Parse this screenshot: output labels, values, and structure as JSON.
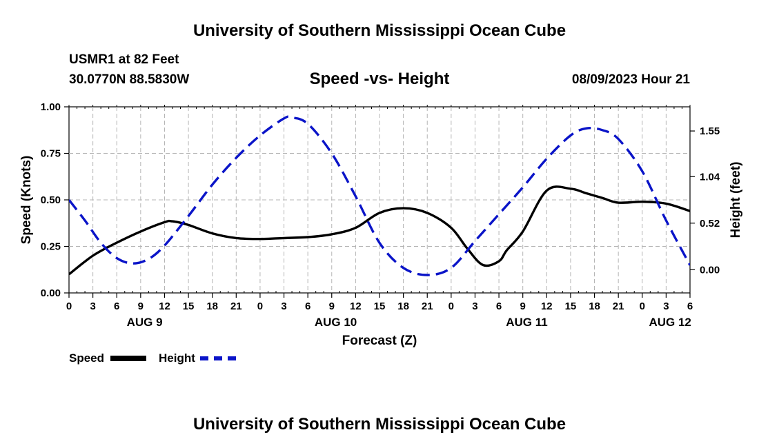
{
  "header": {
    "title": "University of Southern Mississippi Ocean Cube",
    "station": "USMR1 at 82 Feet",
    "coords": "30.0770N  88.5830W",
    "subtitle": "Speed -vs- Height",
    "datetime": "08/09/2023 Hour 21",
    "footer_title": "University of Southern Mississippi Ocean Cube"
  },
  "colors": {
    "speed": "#000000",
    "height": "#0a14c8",
    "grid": "#b4b4b4"
  },
  "legend": {
    "speed_label": "Speed",
    "height_label": "Height"
  },
  "chart_data": {
    "type": "line",
    "title": "Speed -vs- Height",
    "xlabel": "Forecast (Z)",
    "ylabel": "Speed (Knots)",
    "y2label": "Height (feet)",
    "xlim": [
      0,
      78
    ],
    "ylim": [
      0,
      1
    ],
    "y2lim": [
      -0.26,
      1.82
    ],
    "x_tick_values": [
      0,
      3,
      6,
      9,
      12,
      15,
      18,
      21,
      24,
      27,
      30,
      33,
      36,
      39,
      42,
      45,
      48,
      51,
      54,
      57,
      60,
      63,
      66,
      69,
      72,
      75,
      78
    ],
    "x_tick_labels": [
      "0",
      "3",
      "6",
      "9",
      "12",
      "15",
      "18",
      "21",
      "0",
      "3",
      "6",
      "9",
      "12",
      "15",
      "18",
      "21",
      "0",
      "3",
      "6",
      "9",
      "12",
      "15",
      "18",
      "21",
      "0",
      "3",
      "6"
    ],
    "y_ticks": [
      0.0,
      0.25,
      0.5,
      0.75,
      1.0
    ],
    "y_tick_labels": [
      "0.00",
      "0.25",
      "0.50",
      "0.75",
      "1.00"
    ],
    "y2_ticks": [
      0.0,
      0.52,
      1.04,
      1.55
    ],
    "y2_tick_labels": [
      "0.00",
      "0.52",
      "1.04",
      "1.55"
    ],
    "day_labels": [
      {
        "x": 9.5,
        "label": "AUG 9"
      },
      {
        "x": 33.5,
        "label": "AUG 10"
      },
      {
        "x": 57.5,
        "label": "AUG 11"
      },
      {
        "x": 75.5,
        "label": "AUG 12"
      }
    ],
    "series": [
      {
        "name": "Speed",
        "axis": "left",
        "style": "solid",
        "x": [
          0,
          3,
          6,
          9,
          12,
          13,
          15,
          18,
          21,
          24,
          27,
          30,
          33,
          36,
          39,
          42,
          45,
          48,
          50,
          52,
          54,
          55,
          57,
          60,
          63,
          65,
          67,
          69,
          72,
          75,
          78
        ],
        "values": [
          0.1,
          0.2,
          0.27,
          0.33,
          0.38,
          0.385,
          0.365,
          0.32,
          0.295,
          0.29,
          0.295,
          0.3,
          0.315,
          0.35,
          0.43,
          0.455,
          0.43,
          0.35,
          0.24,
          0.15,
          0.17,
          0.23,
          0.33,
          0.55,
          0.56,
          0.535,
          0.51,
          0.485,
          0.49,
          0.48,
          0.44
        ]
      },
      {
        "name": "Height",
        "axis": "right",
        "style": "dashed",
        "x": [
          0,
          2,
          4,
          6,
          8,
          10,
          12,
          15,
          18,
          21,
          24,
          27,
          28,
          30,
          33,
          36,
          39,
          42,
          45,
          48,
          51,
          54,
          57,
          60,
          63,
          65,
          67,
          69,
          72,
          75,
          78
        ],
        "values": [
          0.78,
          0.55,
          0.3,
          0.13,
          0.07,
          0.12,
          0.27,
          0.6,
          0.95,
          1.25,
          1.5,
          1.69,
          1.7,
          1.63,
          1.3,
          0.82,
          0.3,
          0.02,
          -0.06,
          0.02,
          0.32,
          0.62,
          0.92,
          1.24,
          1.5,
          1.58,
          1.56,
          1.46,
          1.1,
          0.55,
          0.05
        ]
      }
    ]
  }
}
